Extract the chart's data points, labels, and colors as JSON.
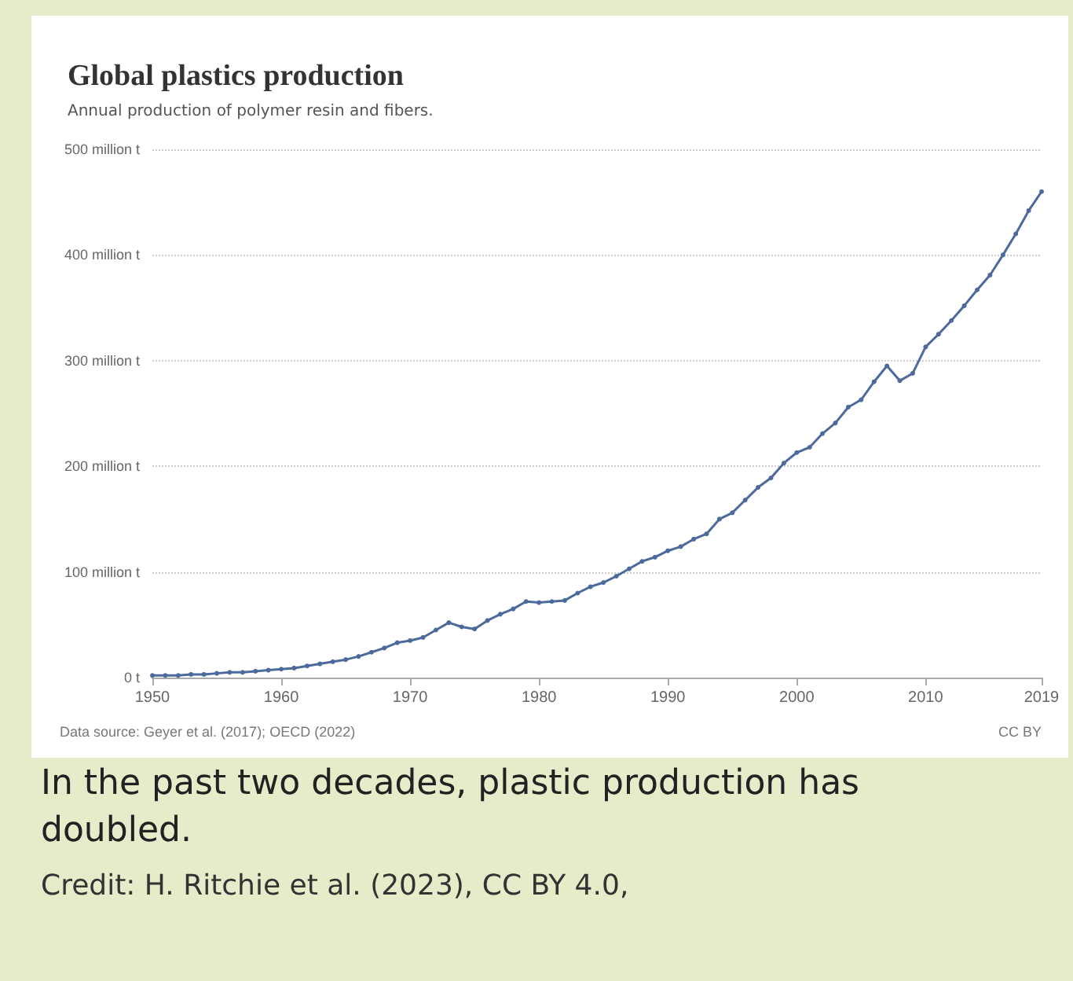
{
  "chart_data": {
    "type": "line",
    "title": "Global plastics production",
    "subtitle": "Annual production of polymer resin and fibers.",
    "x": [
      1950,
      1951,
      1952,
      1953,
      1954,
      1955,
      1956,
      1957,
      1958,
      1959,
      1960,
      1961,
      1962,
      1963,
      1964,
      1965,
      1966,
      1967,
      1968,
      1969,
      1970,
      1971,
      1972,
      1973,
      1974,
      1975,
      1976,
      1977,
      1978,
      1979,
      1980,
      1981,
      1982,
      1983,
      1984,
      1985,
      1986,
      1987,
      1988,
      1989,
      1990,
      1991,
      1992,
      1993,
      1994,
      1995,
      1996,
      1997,
      1998,
      1999,
      2000,
      2001,
      2002,
      2003,
      2004,
      2005,
      2006,
      2007,
      2008,
      2009,
      2010,
      2011,
      2012,
      2013,
      2014,
      2015,
      2016,
      2017,
      2018,
      2019
    ],
    "series": [
      {
        "color": "#4c6a9c",
        "values": [
          2,
          2,
          2,
          3,
          3,
          4,
          5,
          5,
          6,
          7,
          8,
          9,
          11,
          13,
          15,
          17,
          20,
          24,
          28,
          33,
          35,
          38,
          45,
          52,
          48,
          46,
          54,
          60,
          65,
          72,
          71,
          72,
          73,
          80,
          86,
          90,
          96,
          103,
          110,
          114,
          120,
          124,
          131,
          136,
          150,
          156,
          168,
          180,
          189,
          203,
          213,
          218,
          231,
          241,
          256,
          263,
          280,
          295,
          281,
          288,
          313,
          325,
          338,
          352,
          367,
          381,
          400,
          420,
          442,
          460
        ]
      }
    ],
    "xlim": [
      1950,
      2019
    ],
    "xticks": [
      1950,
      1960,
      1970,
      1980,
      1990,
      2000,
      2010,
      2019
    ],
    "ylim": [
      0,
      500
    ],
    "yticks": [
      {
        "value": 0,
        "label": "0 t"
      },
      {
        "value": 100,
        "label": "100 million t"
      },
      {
        "value": 200,
        "label": "200 million t"
      },
      {
        "value": 300,
        "label": "300 million t"
      },
      {
        "value": 400,
        "label": "400 million t"
      },
      {
        "value": 500,
        "label": "500 million t"
      }
    ],
    "grid": "y",
    "marker": "circle",
    "line_style": "solid",
    "annotations": [
      "Data source: Geyer et al. (2017); OECD (2022)",
      "CC BY",
      "In the past two decades, plastic production has doubled.",
      "Credit: H. Ritchie et al. (2023), CC BY 4.0,"
    ]
  }
}
